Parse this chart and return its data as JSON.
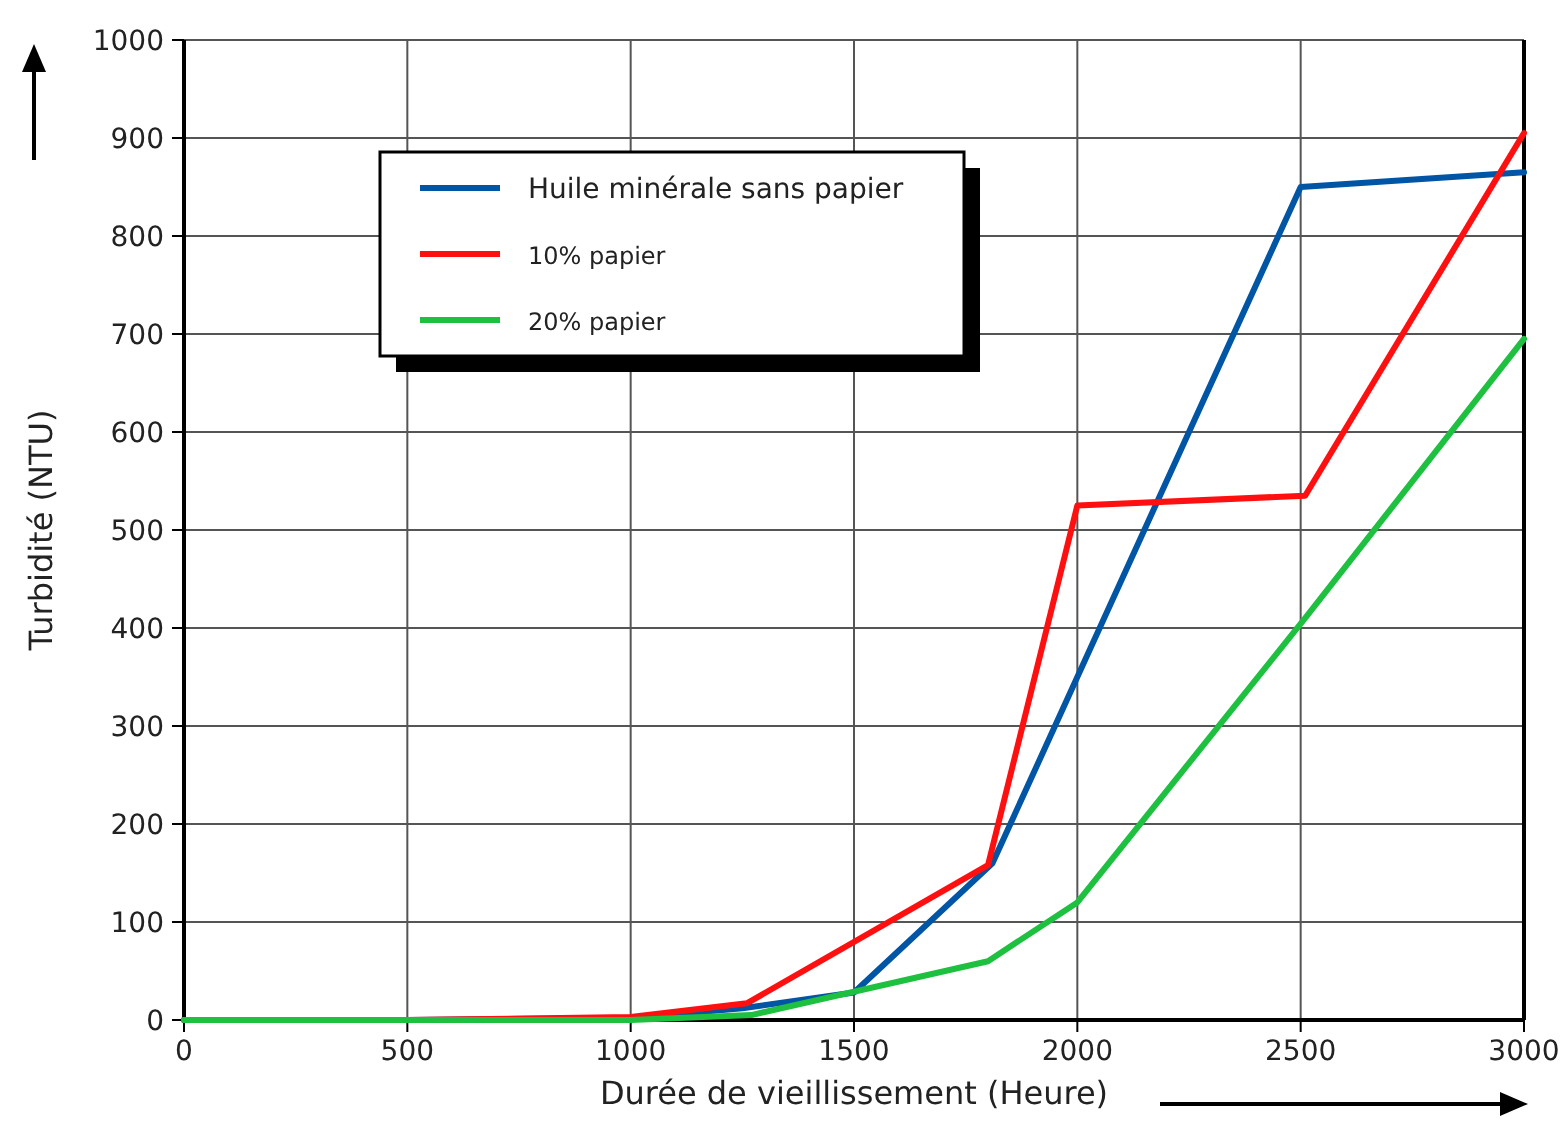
{
  "chart_data": {
    "type": "line",
    "xlabel": "Durée de vieillissement (Heure)",
    "ylabel": "Turbidité (NTU)",
    "xlim": [
      0,
      3000
    ],
    "xticks": [
      0,
      500,
      1000,
      1500,
      2000,
      2500,
      3000
    ],
    "ylim": [
      0,
      1000
    ],
    "yticks": [
      0,
      100,
      200,
      300,
      400,
      500,
      600,
      700,
      800,
      900,
      1000
    ],
    "grid": true,
    "legend": "top left",
    "marker": "none",
    "line_style": "solid",
    "series": [
      {
        "name": "Huile minérale sans papier",
        "color": "#0055a5",
        "x": [
          0,
          500,
          1000,
          1250,
          1500,
          1810,
          2500,
          3000
        ],
        "values": [
          0,
          0,
          2,
          12,
          28,
          160,
          850,
          865
        ]
      },
      {
        "name": "10% papier",
        "color": "#ff1010",
        "x": [
          0,
          500,
          1000,
          1260,
          1800,
          2000,
          2510,
          3000
        ],
        "values": [
          0,
          0,
          3,
          17,
          158,
          525,
          535,
          905
        ]
      },
      {
        "name": "20% papier",
        "color": "#1ec040",
        "x": [
          0,
          500,
          1000,
          1270,
          1800,
          2000,
          2510,
          3000
        ],
        "values": [
          0,
          0,
          0,
          5,
          60,
          120,
          410,
          695
        ]
      }
    ]
  }
}
